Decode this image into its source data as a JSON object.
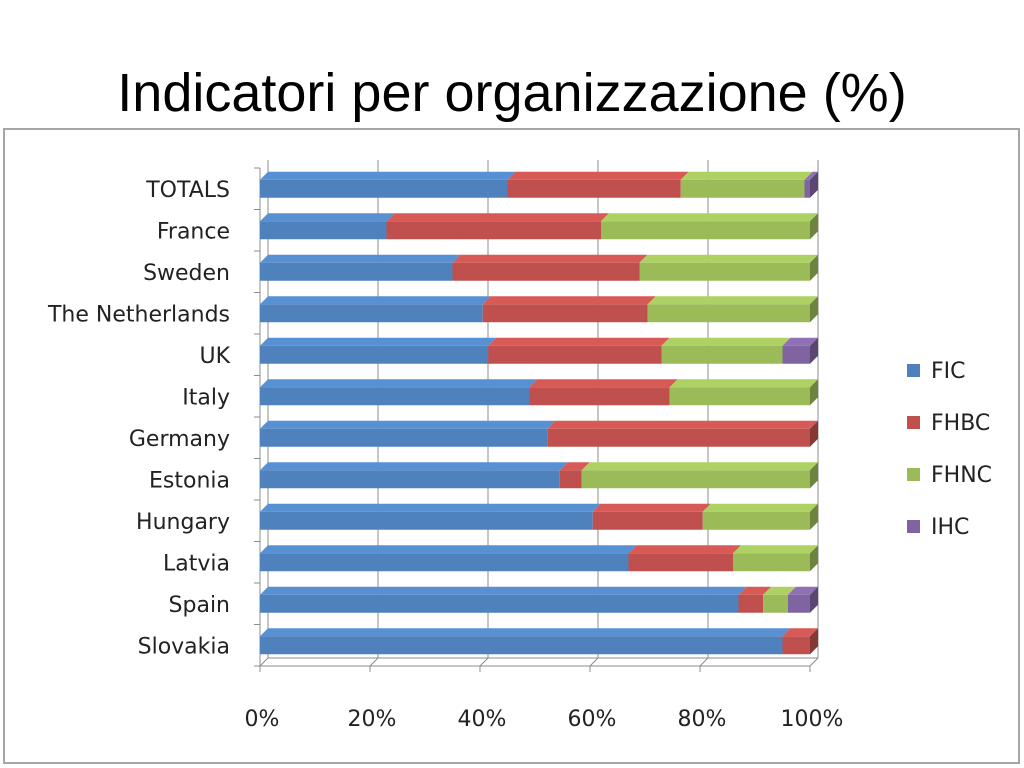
{
  "slide": {
    "title": "Indicatori per organizzazione (%)"
  },
  "chart_data": {
    "type": "bar",
    "orientation": "horizontal",
    "stacked": "percent",
    "categories": [
      "TOTALS",
      "France",
      "Sweden",
      "The Netherlands",
      "UK",
      "Italy",
      "Germany",
      "Estonia",
      "Hungary",
      "Latvia",
      "Spain",
      "Slovakia"
    ],
    "series": [
      {
        "name": "FIC",
        "color": "#4f81bd",
        "values": [
          45,
          23,
          35,
          40.5,
          41.5,
          49,
          52.5,
          54.5,
          60.5,
          67,
          87,
          95
        ]
      },
      {
        "name": "FHBC",
        "color": "#c0504d",
        "values": [
          31.5,
          39,
          34,
          30,
          31.5,
          25.5,
          48,
          4,
          20,
          19,
          4.5,
          5
        ]
      },
      {
        "name": "FHNC",
        "color": "#9bbb59",
        "values": [
          22.5,
          38,
          31,
          29.5,
          22,
          25.5,
          0,
          41.5,
          19.5,
          14,
          4.5,
          0
        ]
      },
      {
        "name": "IHC",
        "color": "#8064a2",
        "values": [
          1,
          0,
          0,
          0,
          5,
          0,
          0,
          0,
          0,
          0,
          4,
          0
        ]
      }
    ],
    "x_ticks": [
      "0%",
      "20%",
      "40%",
      "60%",
      "80%",
      "100%"
    ],
    "xlim": [
      0,
      100
    ],
    "grid": true,
    "legend_position": "right"
  }
}
